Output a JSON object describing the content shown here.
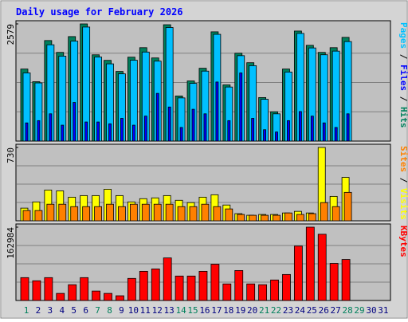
{
  "chart_data": {
    "type": "bar",
    "title": "Daily usage for February 2026",
    "categories": [
      "1",
      "2",
      "3",
      "4",
      "5",
      "6",
      "7",
      "8",
      "9",
      "10",
      "11",
      "12",
      "13",
      "14",
      "15",
      "16",
      "17",
      "18",
      "19",
      "20",
      "21",
      "22",
      "23",
      "24",
      "25",
      "26",
      "27",
      "28",
      "29",
      "30",
      "31"
    ],
    "label_colors": [
      "#00805c",
      "#000080",
      "#000080",
      "#000080",
      "#000080",
      "#000080",
      "#00805c",
      "#00805c",
      "#000080",
      "#000080",
      "#000080",
      "#000080",
      "#000080",
      "#00805c",
      "#00805c",
      "#000080",
      "#000080",
      "#000080",
      "#000080",
      "#000080",
      "#00805c",
      "#00805c",
      "#000080",
      "#000080",
      "#000080",
      "#000080",
      "#000080",
      "#00805c",
      "#00805c",
      "#000080",
      "#000080"
    ],
    "legend_separator": " / ",
    "panels": [
      {
        "ylim": [
          0,
          2579
        ],
        "yticks": [
          2579
        ],
        "series": [
          {
            "name": "Hits",
            "color": "#00805c",
            "values": [
              1586,
              1307,
              2213,
              1952,
              2300,
              2579,
              1899,
              1777,
              1533,
              1847,
              2056,
              1830,
              2561,
              993,
              1324,
              1603,
              2405,
              1237,
              1934,
              1725,
              958,
              645,
              1586,
              2422,
              2108,
              1952,
              2056,
              2283,
              null,
              null,
              null
            ]
          },
          {
            "name": "Files",
            "color": "#0000ff",
            "values": [
              400,
              450,
              600,
              350,
              850,
              420,
              420,
              380,
              500,
              350,
              550,
              1050,
              750,
              300,
              700,
              600,
              1300,
              450,
              1500,
              500,
              250,
              200,
              450,
              650,
              550,
              400,
              300,
              600,
              null,
              null,
              null
            ]
          },
          {
            "name": "Pages",
            "color": "#00c0ff",
            "values": [
              1500,
              1280,
              2120,
              1870,
              2200,
              2510,
              1850,
              1700,
              1480,
              1780,
              1960,
              1760,
              2500,
              950,
              1270,
              1540,
              2350,
              1190,
              1880,
              1660,
              920,
              600,
              1520,
              2370,
              2050,
              1900,
              1980,
              2190,
              null,
              null,
              null
            ]
          }
        ]
      },
      {
        "ylim": [
          0,
          730
        ],
        "yticks": [
          730
        ],
        "series": [
          {
            "name": "Visits",
            "color": "#ffff00",
            "values": [
              126,
              188,
              306,
              298,
              235,
              251,
              251,
              314,
              251,
              188,
              220,
              228,
              251,
              204,
              181,
              235,
              259,
              157,
              71,
              55,
              63,
              63,
              78,
              94,
              78,
              730,
              243,
              432,
              null,
              null,
              null
            ]
          },
          {
            "name": "Sites",
            "color": "#ff8000",
            "values": [
              102,
              102,
              165,
              165,
              141,
              141,
              141,
              165,
              141,
              165,
              165,
              165,
              165,
              141,
              141,
              165,
              141,
              118,
              63,
              55,
              55,
              55,
              78,
              63,
              71,
              181,
              141,
              283,
              null,
              null,
              null
            ]
          }
        ]
      },
      {
        "ylim": [
          0,
          162984
        ],
        "yticks": [
          162984
        ],
        "series": [
          {
            "name": "KBytes",
            "color": "#ff0000",
            "values": [
              50823,
              43813,
              50823,
              15773,
              35051,
              50823,
              21030,
              15773,
              10515,
              49071,
              64844,
              70101,
              94637,
              54328,
              54328,
              64844,
              80616,
              36803,
              66596,
              36803,
              35051,
              45566,
              57834,
              120925,
              162984,
              147212,
              82369,
              91131,
              null,
              null,
              null
            ]
          }
        ]
      }
    ]
  }
}
